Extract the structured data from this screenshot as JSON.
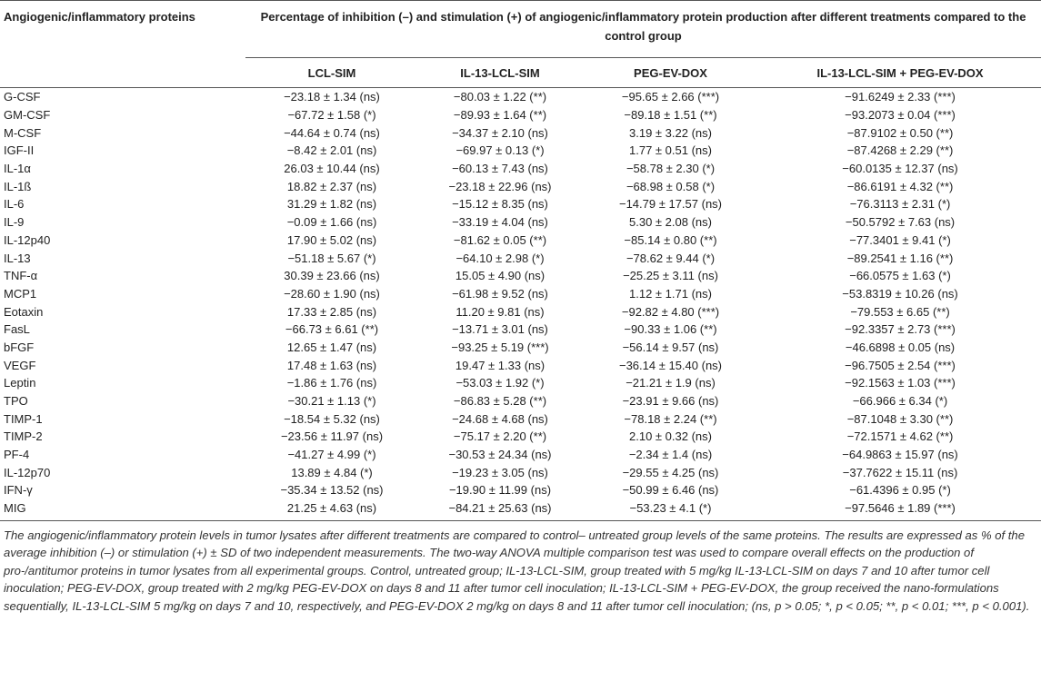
{
  "table": {
    "header": {
      "row_label": "Angiogenic/inflammatory proteins",
      "span_title": "Percentage of inhibition (–) and stimulation (+) of angiogenic/inflammatory protein production after different treatments compared to the control group",
      "columns": [
        "LCL-SIM",
        "IL-13-LCL-SIM",
        "PEG-EV-DOX",
        "IL-13-LCL-SIM + PEG-EV-DOX"
      ]
    },
    "rows": [
      [
        "G-CSF",
        "−23.18 ± 1.34 (ns)",
        "−80.03 ± 1.22 (**)",
        "−95.65 ± 2.66 (***)",
        "−91.6249 ± 2.33 (***)"
      ],
      [
        "GM-CSF",
        "−67.72 ± 1.58 (*)",
        "−89.93 ± 1.64 (**)",
        "−89.18 ± 1.51 (**)",
        "−93.2073 ± 0.04 (***)"
      ],
      [
        "M-CSF",
        "−44.64 ± 0.74 (ns)",
        "−34.37 ± 2.10 (ns)",
        "3.19 ± 3.22 (ns)",
        "−87.9102 ± 0.50 (**)"
      ],
      [
        "IGF-II",
        "−8.42 ± 2.01 (ns)",
        "−69.97 ± 0.13 (*)",
        "1.77 ± 0.51 (ns)",
        "−87.4268 ± 2.29 (**)"
      ],
      [
        "IL-1α",
        "26.03 ± 10.44 (ns)",
        "−60.13 ± 7.43 (ns)",
        "−58.78 ± 2.30 (*)",
        "−60.0135 ± 12.37 (ns)"
      ],
      [
        "IL-1ß",
        "18.82 ± 2.37 (ns)",
        "−23.18 ± 22.96 (ns)",
        "−68.98 ± 0.58 (*)",
        "−86.6191 ± 4.32 (**)"
      ],
      [
        "IL-6",
        "31.29 ± 1.82 (ns)",
        "−15.12 ± 8.35 (ns)",
        "−14.79 ± 17.57 (ns)",
        "−76.3113 ± 2.31 (*)"
      ],
      [
        "IL-9",
        "−0.09 ± 1.66 (ns)",
        "−33.19 ± 4.04 (ns)",
        "5.30 ± 2.08 (ns)",
        "−50.5792 ± 7.63 (ns)"
      ],
      [
        "IL-12p40",
        "17.90 ± 5.02 (ns)",
        "−81.62 ± 0.05 (**)",
        "−85.14 ± 0.80 (**)",
        "−77.3401 ± 9.41 (*)"
      ],
      [
        "IL-13",
        "−51.18 ± 5.67 (*)",
        "−64.10 ± 2.98 (*)",
        "−78.62 ± 9.44 (*)",
        "−89.2541 ± 1.16 (**)"
      ],
      [
        "TNF-α",
        "30.39 ± 23.66 (ns)",
        "15.05 ± 4.90 (ns)",
        "−25.25 ± 3.11 (ns)",
        "−66.0575 ± 1.63 (*)"
      ],
      [
        "MCP1",
        "−28.60 ± 1.90 (ns)",
        "−61.98 ± 9.52 (ns)",
        "1.12 ± 1.71 (ns)",
        "−53.8319 ± 10.26 (ns)"
      ],
      [
        "Eotaxin",
        "17.33 ± 2.85 (ns)",
        "11.20 ± 9.81 (ns)",
        "−92.82 ± 4.80 (***)",
        "−79.553 ± 6.65 (**)"
      ],
      [
        "FasL",
        "−66.73 ± 6.61 (**)",
        "−13.71 ± 3.01 (ns)",
        "−90.33 ± 1.06 (**)",
        "−92.3357 ± 2.73 (***)"
      ],
      [
        "bFGF",
        "12.65 ± 1.47 (ns)",
        "−93.25 ± 5.19 (***)",
        "−56.14 ± 9.57 (ns)",
        "−46.6898 ± 0.05 (ns)"
      ],
      [
        "VEGF",
        "17.48 ± 1.63 (ns)",
        "19.47 ± 1.33 (ns)",
        "−36.14 ± 15.40 (ns)",
        "−96.7505 ± 2.54 (***)"
      ],
      [
        "Leptin",
        "−1.86 ± 1.76 (ns)",
        "−53.03 ± 1.92 (*)",
        "−21.21 ± 1.9 (ns)",
        "−92.1563 ± 1.03 (***)"
      ],
      [
        "TPO",
        "−30.21 ± 1.13 (*)",
        "−86.83 ± 5.28 (**)",
        "−23.91 ± 9.66 (ns)",
        "−66.966 ± 6.34 (*)"
      ],
      [
        "TIMP-1",
        "−18.54 ± 5.32 (ns)",
        "−24.68 ± 4.68 (ns)",
        "−78.18 ± 2.24 (**)",
        "−87.1048 ± 3.30 (**)"
      ],
      [
        "TIMP-2",
        "−23.56 ± 11.97 (ns)",
        "−75.17 ± 2.20 (**)",
        "2.10 ± 0.32 (ns)",
        "−72.1571 ± 4.62 (**)"
      ],
      [
        "PF-4",
        "−41.27 ± 4.99 (*)",
        "−30.53 ± 24.34 (ns)",
        "−2.34 ± 1.4 (ns)",
        "−64.9863 ± 15.97 (ns)"
      ],
      [
        "IL-12p70",
        "13.89 ± 4.84 (*)",
        "−19.23 ± 3.05 (ns)",
        "−29.55 ± 4.25 (ns)",
        "−37.7622 ± 15.11 (ns)"
      ],
      [
        "IFN-γ",
        "−35.34 ± 13.52 (ns)",
        "−19.90 ± 11.99 (ns)",
        "−50.99 ± 6.46 (ns)",
        "−61.4396 ± 0.95 (*)"
      ],
      [
        "MIG",
        "21.25 ± 4.63 (ns)",
        "−84.21 ± 25.63 (ns)",
        "−53.23 ± 4.1 (*)",
        "−97.5646 ± 1.89 (***)"
      ]
    ],
    "footnote": "The angiogenic/inflammatory protein levels in tumor lysates after different treatments are compared to control– untreated group levels of the same proteins. The results are expressed as % of the average inhibition (–) or stimulation (+) ± SD of two independent measurements. The two-way ANOVA multiple comparison test was used to compare overall effects on the production of pro-/antitumor proteins in tumor lysates from all experimental groups. Control, untreated group; IL-13-LCL-SIM, group treated with 5 mg/kg IL-13-LCL-SIM on days 7 and 10 after tumor cell inoculation; PEG-EV-DOX, group treated with 2 mg/kg PEG-EV-DOX on days 8 and 11 after tumor cell inoculation; IL-13-LCL-SIM + PEG-EV-DOX, the group received the nano-formulations sequentially, IL-13-LCL-SIM 5 mg/kg on days 7 and 10, respectively, and PEG-EV-DOX 2 mg/kg on days 8 and 11 after tumor cell inoculation; (ns, p > 0.05; *, p < 0.05; **, p < 0.01; ***, p < 0.001)."
  }
}
